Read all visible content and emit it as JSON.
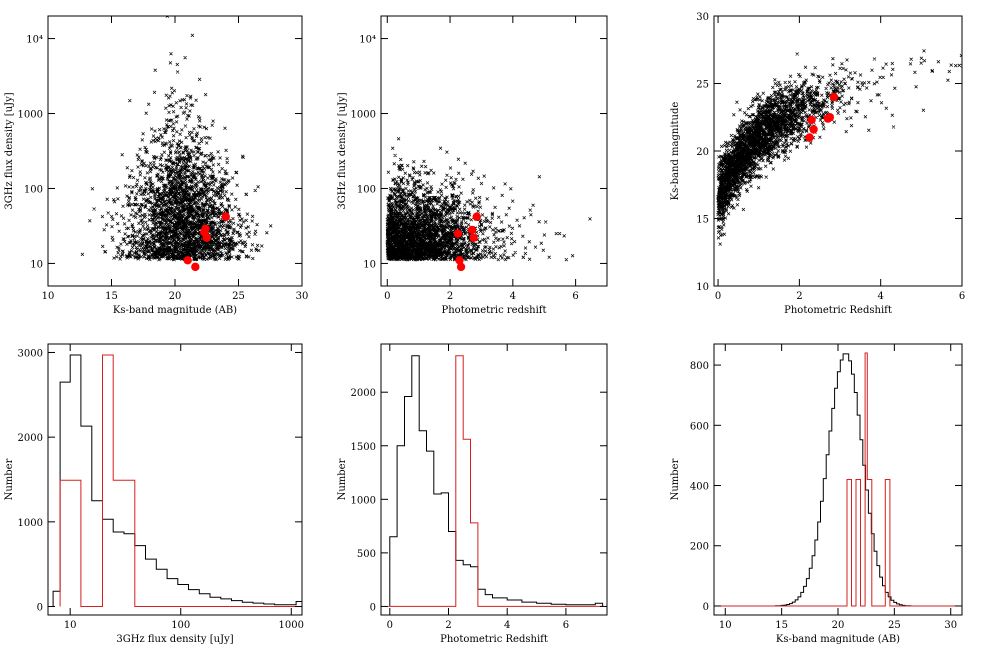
{
  "chart_data": [
    {
      "type": "scatter",
      "xlabel": "Ks-band magnitude (AB)",
      "ylabel": "3GHz flux density [uJy]",
      "xlim": [
        10,
        30
      ],
      "ylim": [
        5,
        20000
      ],
      "ylog": true,
      "xticks": [
        10,
        15,
        20,
        25,
        30
      ],
      "yticks": [
        10,
        100,
        1000,
        10000
      ],
      "yticklabels": [
        "10",
        "100",
        "1000",
        "10⁴"
      ],
      "cloud": {
        "color": "#000000",
        "marker": "x",
        "note_density": "dense cloud centered near Ks~20-21, flux 10-30 uJy"
      },
      "highlight": {
        "color": "#ff0000",
        "marker": "circle",
        "x": [
          21.0,
          21.6,
          22.3,
          22.4,
          22.5,
          24.0
        ],
        "y": [
          11,
          9,
          26,
          29,
          22,
          42
        ]
      }
    },
    {
      "type": "scatter",
      "xlabel": "Photometric redshift",
      "ylabel": "3GHz flux density [uJy]",
      "xlim": [
        -0.2,
        7
      ],
      "ylim": [
        5,
        20000
      ],
      "ylog": true,
      "xticks": [
        0,
        2,
        4,
        6
      ],
      "yticks": [
        10,
        100,
        1000,
        10000
      ],
      "yticklabels": [
        "10",
        "100",
        "1000",
        "10⁴"
      ],
      "cloud": {
        "color": "#000000",
        "marker": "x"
      },
      "highlight": {
        "color": "#ff0000",
        "marker": "circle",
        "x": [
          2.25,
          2.3,
          2.35,
          2.7,
          2.75,
          2.85
        ],
        "y": [
          25,
          11,
          9,
          28,
          22,
          42
        ]
      }
    },
    {
      "type": "scatter",
      "xlabel": "Photometric Redshift",
      "ylabel": "Ks-band magnitude",
      "xlim": [
        -0.1,
        6
      ],
      "ylim": [
        10,
        30
      ],
      "xticks": [
        0,
        2,
        4,
        6
      ],
      "yticks": [
        10,
        15,
        20,
        25,
        30
      ],
      "cloud": {
        "color": "#000000",
        "marker": "x"
      },
      "highlight": {
        "color": "#ff0000",
        "marker": "circle",
        "x": [
          2.25,
          2.3,
          2.35,
          2.7,
          2.75,
          2.85
        ],
        "y": [
          21.0,
          22.3,
          21.6,
          22.4,
          22.5,
          24.0
        ]
      }
    },
    {
      "type": "histogram",
      "xlabel": "3GHz flux density [uJy]",
      "ylabel": "Number",
      "xlim": [
        6.3,
        1250
      ],
      "xlog": true,
      "ylim": [
        -100,
        3100
      ],
      "xticks": [
        10,
        100,
        1000
      ],
      "yticks": [
        0,
        1000,
        2000,
        3000
      ],
      "series": [
        {
          "color": "#000000",
          "edges": [
            7,
            8.1,
            10.0,
            12.5,
            15.7,
            19.6,
            24.5,
            30.7,
            38.4,
            48.0,
            60.1,
            75.2,
            94.0,
            117.6,
            147.2,
            184.1,
            230.3,
            288.1,
            360.4,
            450.9,
            564.1,
            705.8,
            883.0,
            1104.6,
            1250
          ],
          "counts": [
            180,
            2650,
            2970,
            2130,
            1250,
            1030,
            880,
            860,
            720,
            560,
            440,
            330,
            260,
            200,
            150,
            110,
            90,
            70,
            50,
            40,
            30,
            20,
            20,
            60
          ]
        },
        {
          "color": "#d62020",
          "edges": [
            8.1,
            12.5,
            19.6,
            24.5,
            38.4,
            1250
          ],
          "counts": [
            1490,
            0,
            2970,
            1490,
            0
          ]
        }
      ]
    },
    {
      "type": "histogram",
      "xlabel": "Photometric Redshift",
      "ylabel": "Number",
      "xlim": [
        -0.3,
        7.4
      ],
      "ylim": [
        -80,
        2450
      ],
      "xticks": [
        0,
        2,
        4,
        6
      ],
      "yticks": [
        0,
        500,
        1000,
        1500,
        2000
      ],
      "series": [
        {
          "color": "#000000",
          "edges": [
            0,
            0.25,
            0.5,
            0.75,
            1.0,
            1.25,
            1.5,
            1.75,
            2.0,
            2.25,
            2.5,
            2.75,
            3.0,
            3.25,
            3.5,
            4.0,
            4.5,
            5.0,
            5.5,
            6.0,
            6.5,
            7.0,
            7.25
          ],
          "counts": [
            650,
            1500,
            1960,
            2340,
            1640,
            1450,
            1050,
            1060,
            700,
            430,
            390,
            370,
            160,
            110,
            80,
            60,
            40,
            30,
            20,
            15,
            15,
            30
          ]
        },
        {
          "color": "#d62020",
          "edges": [
            -0.05,
            2.25,
            2.5,
            2.75,
            3.0,
            7.25
          ],
          "counts": [
            0,
            2340,
            1560,
            780,
            0
          ]
        }
      ]
    },
    {
      "type": "histogram",
      "xlabel": "Ks-band magnitude (AB)",
      "ylabel": "Number",
      "xlim": [
        9,
        31
      ],
      "ylim": [
        -30,
        870
      ],
      "xticks": [
        10,
        15,
        20,
        25,
        30
      ],
      "yticks": [
        0,
        200,
        400,
        600,
        800
      ],
      "series": [
        {
          "color": "#000000",
          "peak_center": 20.7,
          "peak_count": 840,
          "sigma_lo": 1.6,
          "sigma_hi": 1.5,
          "range": [
            9.2,
            30.5
          ]
        },
        {
          "color": "#d62020",
          "edges": [
            9.2,
            20.8,
            21.2,
            21.6,
            22.0,
            22.4,
            22.6,
            23.0,
            24.2,
            24.6,
            30.5
          ],
          "counts": [
            0,
            420,
            0,
            420,
            0,
            840,
            420,
            0,
            420,
            0
          ]
        }
      ]
    }
  ]
}
